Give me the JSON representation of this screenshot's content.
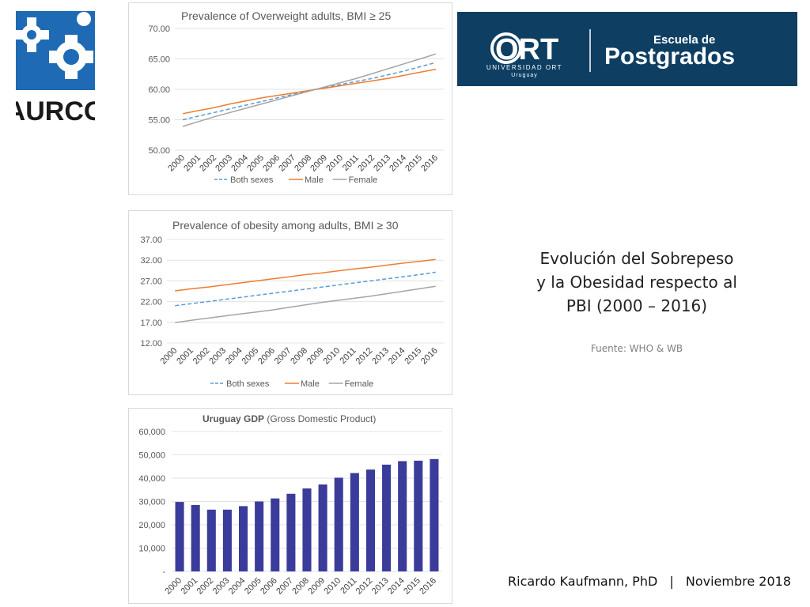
{
  "logos": {
    "aurco_text": "AURCO",
    "ort_name": "ORT",
    "ort_subtitle": "UNIVERSIDAD ORT",
    "ort_country": "Uruguay",
    "postgrados_line1": "Escuela de",
    "postgrados_line2": "Postgrados"
  },
  "side": {
    "title_line1": "Evolución del Sobrepeso",
    "title_line2": "y la Obesidad respecto al",
    "title_line3": "PBI (2000 – 2016)",
    "source": "Fuente: WHO & WB"
  },
  "footer": {
    "author": "Ricardo Kaufmann, PhD",
    "separator": "|",
    "date": "Noviembre 2018"
  },
  "colors": {
    "both": "#5b9bd5",
    "male": "#ed7d31",
    "female": "#a5a5a5",
    "bar": "#3b3b9b",
    "banner": "#0e3f63",
    "aurco_blue": "#1f6ab4"
  },
  "chart_data": [
    {
      "type": "line",
      "title": "Prevalence of Overweight adults, BMI ≥ 25",
      "x": [
        "2000",
        "2001",
        "2002",
        "2003",
        "2004",
        "2005",
        "2006",
        "2007",
        "2008",
        "2009",
        "2010",
        "2011",
        "2012",
        "2013",
        "2014",
        "2015",
        "2016"
      ],
      "ylim": [
        50,
        70
      ],
      "yticks": [
        "50.00",
        "55.00",
        "60.00",
        "65.00",
        "70.00"
      ],
      "series": [
        {
          "name": "Both sexes",
          "style": "dashed",
          "values": [
            55.0,
            55.6,
            56.2,
            56.8,
            57.4,
            58.0,
            58.6,
            59.2,
            59.8,
            60.3,
            60.8,
            61.3,
            61.8,
            62.4,
            63.0,
            63.7,
            64.4
          ]
        },
        {
          "name": "Male",
          "style": "solid",
          "values": [
            56.0,
            56.5,
            57.0,
            57.6,
            58.1,
            58.6,
            59.0,
            59.4,
            59.8,
            60.2,
            60.6,
            61.0,
            61.4,
            61.8,
            62.3,
            62.8,
            63.3
          ]
        },
        {
          "name": "Female",
          "style": "solid",
          "values": [
            53.9,
            54.7,
            55.5,
            56.2,
            56.9,
            57.6,
            58.3,
            59.0,
            59.7,
            60.4,
            61.1,
            61.8,
            62.6,
            63.4,
            64.2,
            65.0,
            65.8
          ]
        }
      ]
    },
    {
      "type": "line",
      "title": "Prevalence of obesity among adults, BMI ≥ 30",
      "x": [
        "2000",
        "2001",
        "2002",
        "2003",
        "2004",
        "2005",
        "2006",
        "2007",
        "2008",
        "2009",
        "2010",
        "2011",
        "2012",
        "2013",
        "2014",
        "2015",
        "2016"
      ],
      "ylim": [
        12,
        37
      ],
      "yticks": [
        "12.00",
        "17.00",
        "22.00",
        "27.00",
        "32.00",
        "37.00"
      ],
      "series": [
        {
          "name": "Both sexes",
          "style": "dashed",
          "values": [
            21.0,
            21.5,
            22.0,
            22.5,
            23.0,
            23.5,
            24.0,
            24.5,
            25.0,
            25.5,
            26.0,
            26.5,
            27.0,
            27.5,
            28.0,
            28.5,
            29.1
          ]
        },
        {
          "name": "Male",
          "style": "solid",
          "values": [
            24.6,
            25.1,
            25.5,
            26.0,
            26.5,
            27.0,
            27.5,
            28.0,
            28.5,
            28.9,
            29.4,
            29.9,
            30.3,
            30.8,
            31.3,
            31.7,
            32.2
          ]
        },
        {
          "name": "Female",
          "style": "solid",
          "values": [
            16.9,
            17.5,
            18.0,
            18.5,
            19.0,
            19.5,
            20.0,
            20.6,
            21.2,
            21.8,
            22.3,
            22.8,
            23.3,
            23.9,
            24.5,
            25.1,
            25.7
          ]
        }
      ]
    },
    {
      "type": "bar",
      "title_bold": "Uruguay GDP",
      "title_rest": " (Gross Domestic Product)",
      "categories": [
        "2000",
        "2001",
        "2002",
        "2003",
        "2004",
        "2005",
        "2006",
        "2007",
        "2008",
        "2009",
        "2010",
        "2011",
        "2012",
        "2013",
        "2014",
        "2015",
        "2016"
      ],
      "values": [
        29800,
        28500,
        26500,
        26500,
        28000,
        30000,
        31300,
        33300,
        35600,
        37300,
        40200,
        42200,
        43700,
        45800,
        47300,
        47500,
        48200
      ],
      "ylim": [
        0,
        60000
      ],
      "yticks": [
        "-",
        "10,000",
        "20,000",
        "30,000",
        "40,000",
        "50,000",
        "60,000"
      ]
    }
  ]
}
